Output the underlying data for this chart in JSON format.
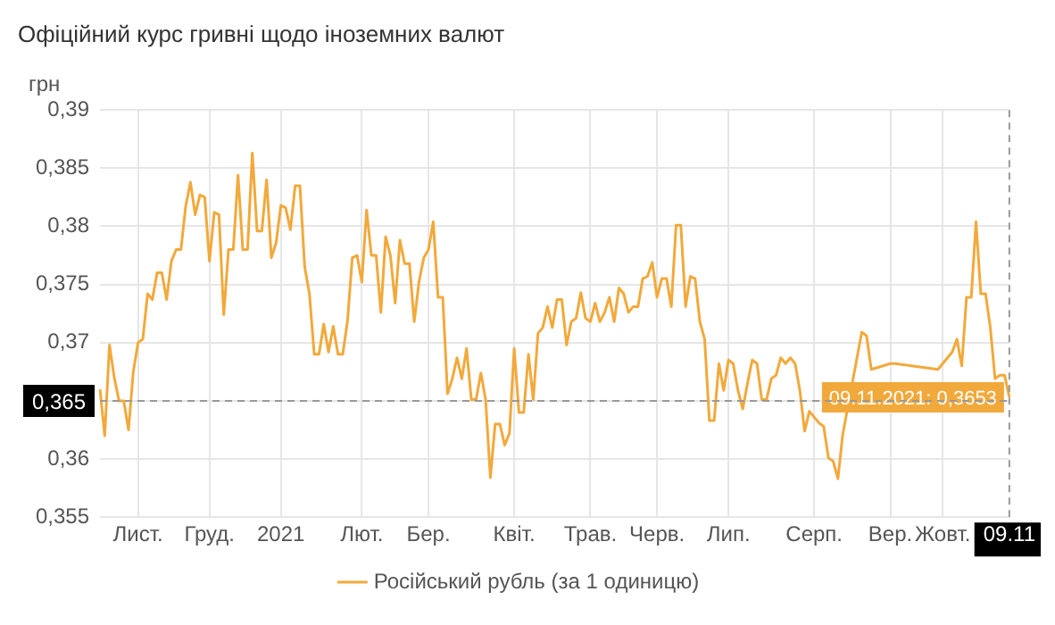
{
  "chart_data": {
    "type": "line",
    "title": "Офіційний курс гривні щодо іноземних валют",
    "ylabel": "грн",
    "categories": [
      null,
      null,
      null,
      null,
      null,
      null,
      null,
      null,
      "Лист.",
      null,
      null,
      null,
      null,
      null,
      null,
      null,
      null,
      null,
      null,
      null,
      null,
      null,
      null,
      "Груд.",
      null,
      null,
      null,
      null,
      null,
      null,
      null,
      null,
      null,
      null,
      null,
      null,
      null,
      null,
      "2021",
      null,
      null,
      null,
      null,
      null,
      null,
      null,
      null,
      null,
      null,
      null,
      null,
      null,
      null,
      null,
      null,
      "Лют.",
      null,
      null,
      null,
      null,
      null,
      null,
      null,
      null,
      null,
      null,
      null,
      null,
      null,
      "Бер.",
      null,
      null,
      null,
      null,
      null,
      null,
      null,
      null,
      null,
      null,
      null,
      null,
      null,
      null,
      null,
      null,
      null,
      "Квіт.",
      null,
      null,
      null,
      null,
      null,
      null,
      null,
      null,
      null,
      null,
      null,
      null,
      null,
      null,
      null,
      "Трав.",
      null,
      null,
      null,
      null,
      null,
      null,
      null,
      null,
      null,
      null,
      null,
      null,
      null,
      "Черв.",
      null,
      null,
      null,
      null,
      null,
      null,
      null,
      null,
      null,
      null,
      null,
      null,
      null,
      null,
      "Лип.",
      null,
      null,
      null,
      null,
      null,
      null,
      null,
      null,
      null,
      null,
      null,
      null,
      null,
      null,
      null,
      null,
      null,
      "Серп.",
      null,
      null,
      null,
      null,
      null,
      null,
      null,
      null,
      null,
      null,
      null,
      null,
      null,
      null,
      null,
      "Вер.",
      null,
      null,
      null,
      null,
      null,
      null,
      null,
      null,
      null,
      null,
      "Жовт.",
      null,
      null,
      null,
      null,
      null,
      null,
      null,
      null,
      null,
      null,
      null,
      null,
      null,
      "09.11"
    ],
    "ylim": [
      0.355,
      0.39
    ],
    "yticks": [
      {
        "value": 0.355,
        "label": "0,355"
      },
      {
        "value": 0.36,
        "label": "0,36"
      },
      {
        "value": 0.365,
        "label": null
      },
      {
        "value": 0.37,
        "label": "0,37"
      },
      {
        "value": 0.375,
        "label": "0,375"
      },
      {
        "value": 0.38,
        "label": "0,38"
      },
      {
        "value": 0.385,
        "label": "0,385"
      },
      {
        "value": 0.39,
        "label": "0,39"
      }
    ],
    "grid": true,
    "legend": "bottom",
    "ref_lines": [
      {
        "axis": "y",
        "value": 0.365,
        "label": "0,365",
        "line_style": "dashed"
      },
      {
        "axis": "x",
        "value": "09.11",
        "line_style": "dashed"
      }
    ],
    "annotations": [
      {
        "text": "09.11.2021: 0,3653",
        "x": "09.11",
        "y": 0.3653
      }
    ],
    "series": [
      {
        "name": "Російський рубль (за 1 одиницю)",
        "color": "#f2a93b",
        "values": [
          0.366,
          0.362,
          0.3698,
          0.367,
          0.365,
          0.365,
          0.3625,
          0.3675,
          0.37,
          0.3703,
          0.3742,
          0.3737,
          0.376,
          0.376,
          0.3737,
          0.377,
          0.378,
          0.378,
          0.3817,
          0.3838,
          0.381,
          0.3827,
          0.3825,
          0.377,
          0.3812,
          0.381,
          0.3724,
          0.378,
          0.378,
          0.3844,
          0.378,
          0.378,
          0.3863,
          0.3796,
          0.3796,
          0.384,
          0.3773,
          0.3786,
          0.3818,
          0.3816,
          0.3797,
          0.3835,
          0.3835,
          0.3765,
          0.3742,
          0.369,
          0.369,
          0.3716,
          0.3692,
          0.3714,
          0.369,
          0.369,
          0.3719,
          0.3773,
          0.3775,
          0.3752,
          0.3814,
          0.3775,
          0.3775,
          0.3726,
          0.3791,
          0.3775,
          0.3734,
          0.3788,
          0.3768,
          0.3768,
          0.3718,
          0.3752,
          0.3773,
          0.378,
          0.3804,
          0.3739,
          0.3739,
          0.3656,
          0.3669,
          0.3687,
          0.3669,
          0.3695,
          0.3651,
          0.3651,
          0.3674,
          0.3651,
          0.3584,
          0.363,
          0.363,
          0.3612,
          0.3622,
          0.3695,
          0.364,
          0.364,
          0.369,
          0.3651,
          0.3708,
          0.3713,
          0.3731,
          0.3713,
          0.3737,
          0.3737,
          0.3698,
          0.3718,
          0.3721,
          0.3743,
          0.3721,
          0.3718,
          0.3734,
          0.3718,
          0.3726,
          0.3739,
          0.3718,
          0.3747,
          0.3742,
          0.3726,
          0.3731,
          0.3731,
          0.3755,
          0.3757,
          0.3769,
          0.3739,
          0.3755,
          0.3755,
          0.3731,
          0.3801,
          0.3801,
          0.3731,
          0.3757,
          0.3755,
          0.3718,
          0.3703,
          0.3633,
          0.3633,
          0.3682,
          0.3659,
          0.3685,
          0.3682,
          0.3659,
          0.3643,
          0.3665,
          0.3685,
          0.3682,
          0.3651,
          0.3651,
          0.3669,
          0.3672,
          0.3687,
          0.3682,
          0.3687,
          0.3682,
          0.3659,
          0.3624,
          0.3641,
          null,
          0.3631,
          0.3628,
          0.3601,
          0.3598,
          0.3583,
          0.3621,
          null,
          null,
          0.3687,
          0.3709,
          0.3706,
          0.3677,
          null,
          null,
          null,
          0.3682,
          0.3682,
          null,
          null,
          null,
          null,
          null,
          null,
          null,
          null,
          0.3677,
          null,
          null,
          0.3692,
          0.3703,
          0.368,
          0.3739,
          0.3739,
          0.3804,
          0.3742,
          0.3742,
          0.3713,
          0.3669,
          0.3672,
          0.3672,
          0.3653
        ]
      }
    ]
  }
}
